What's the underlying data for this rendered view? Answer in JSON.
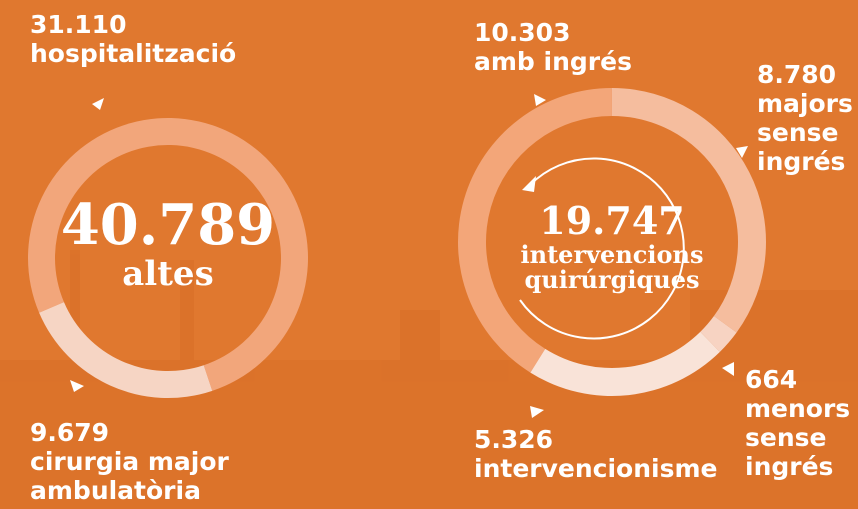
{
  "chart_data": [
    {
      "type": "pie",
      "donut": true,
      "center_value": {
        "value": 40789,
        "label": "40.789"
      },
      "center_text": "altes",
      "categories": [
        "hospitalització",
        "cirurgia major ambulatòria"
      ],
      "values": [
        31110,
        9679
      ],
      "value_labels": [
        "31.110",
        "9.679"
      ],
      "colors": [
        "#f2a67b",
        "#f6d5c4"
      ]
    },
    {
      "type": "pie",
      "donut": true,
      "center_value": {
        "value": 19747,
        "label": "19.747"
      },
      "center_text": "intervencions quirúrgiques",
      "categories": [
        "amb ingrés",
        "majors sense ingrés",
        "menors sense ingrés",
        "intervencionisme"
      ],
      "values": [
        10303,
        8780,
        664,
        5326
      ],
      "value_labels": [
        "10.303",
        "8.780",
        "664",
        "5.326"
      ],
      "colors": [
        "#f3a679",
        "#f5bd9e",
        "#f7d3c2",
        "#f9e3d8"
      ]
    }
  ]
}
